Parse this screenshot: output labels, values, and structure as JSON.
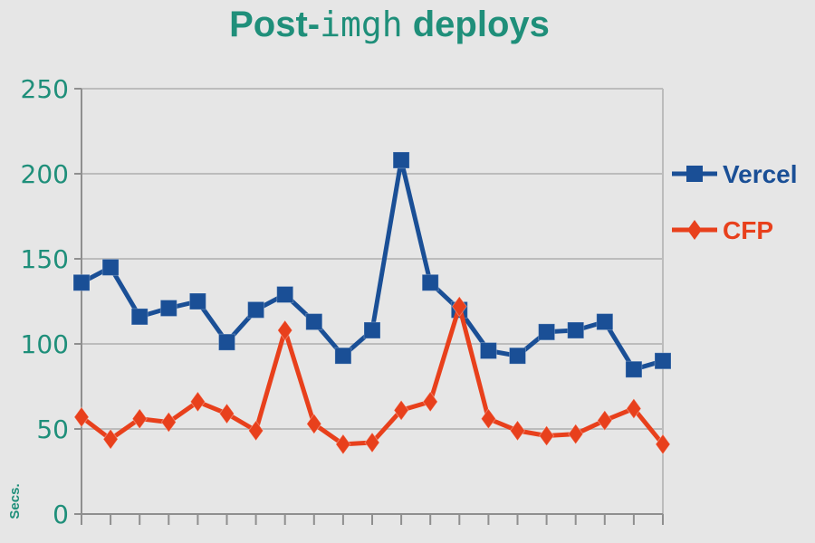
{
  "colors": {
    "background": "#e6e6e6",
    "title": "#1f8f7a",
    "axis_text": "#1f8f7a",
    "grid": "#bcbcbc",
    "axis": "#8f8f8f"
  },
  "chart_data": {
    "type": "line",
    "title_parts": [
      "Post-",
      "imgh",
      " deploys"
    ],
    "xlabel": "",
    "ylabel": "Secs.",
    "ylim": [
      0,
      250
    ],
    "yticks": [
      0,
      50,
      100,
      150,
      200,
      250
    ],
    "ytick_labels": [
      "0",
      "50",
      "100",
      "150",
      "200",
      "250"
    ],
    "x": [
      1,
      2,
      3,
      4,
      5,
      6,
      7,
      8,
      9,
      10,
      11,
      12,
      13,
      14,
      15,
      16,
      17,
      18,
      19,
      20,
      21
    ],
    "grid": true,
    "legend_position": "right",
    "series": [
      {
        "name": "Vercel",
        "color": "#1a4f96",
        "marker": "square",
        "values": [
          136,
          145,
          116,
          121,
          125,
          101,
          120,
          129,
          113,
          93,
          108,
          208,
          136,
          120,
          96,
          93,
          107,
          108,
          113,
          85,
          90
        ]
      },
      {
        "name": "CFP",
        "color": "#e8401c",
        "marker": "diamond",
        "values": [
          57,
          44,
          56,
          54,
          66,
          59,
          49,
          108,
          53,
          41,
          42,
          61,
          66,
          122,
          56,
          49,
          46,
          47,
          55,
          62,
          41
        ]
      }
    ]
  }
}
